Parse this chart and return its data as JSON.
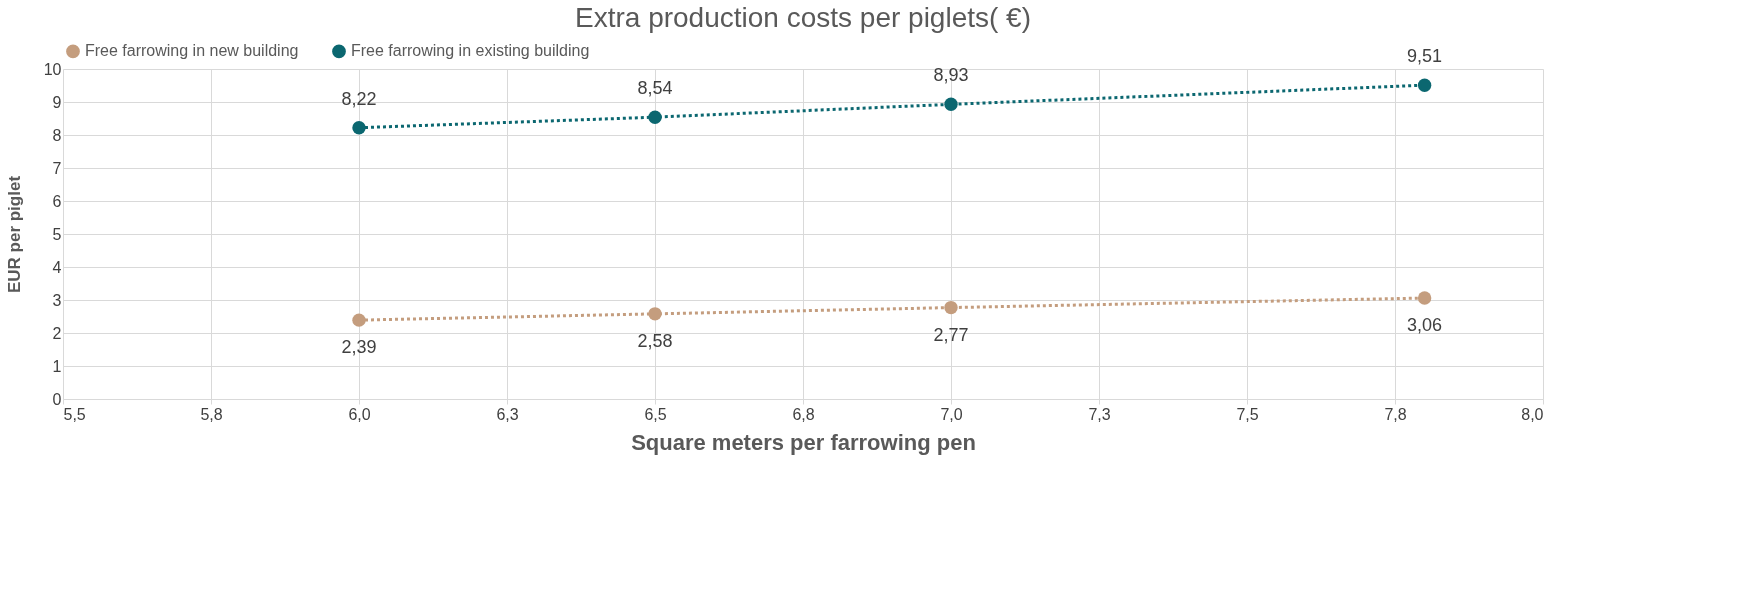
{
  "chart_data": {
    "type": "line",
    "title": "Extra production costs per piglets( €)",
    "xlabel": "Square meters per farrowing pen",
    "ylabel": "EUR per piglet",
    "x": [
      6.0,
      6.5,
      7.0,
      7.8
    ],
    "series": [
      {
        "name": "Free farrowing in new building",
        "color": "#c49d7e",
        "values": [
          2.39,
          2.58,
          2.77,
          3.06
        ],
        "value_labels": [
          "2,39",
          "2,58",
          "2,77",
          "3,06"
        ]
      },
      {
        "name": "Free farrowing in existing building",
        "color": "#0b6770",
        "values": [
          8.22,
          8.54,
          8.93,
          9.51
        ],
        "value_labels": [
          "8,22",
          "8,54",
          "8,93",
          "9,51"
        ]
      }
    ],
    "xlim": [
      5.5,
      8.0
    ],
    "xticks": [
      {
        "value": 5.5,
        "label": "5,5"
      },
      {
        "value": 5.75,
        "label": "5,8"
      },
      {
        "value": 6.0,
        "label": "6,0"
      },
      {
        "value": 6.25,
        "label": "6,3"
      },
      {
        "value": 6.5,
        "label": "6,5"
      },
      {
        "value": 6.75,
        "label": "6,8"
      },
      {
        "value": 7.0,
        "label": "7,0"
      },
      {
        "value": 7.25,
        "label": "7,3"
      },
      {
        "value": 7.5,
        "label": "7,5"
      },
      {
        "value": 7.75,
        "label": "7,8"
      },
      {
        "value": 8.0,
        "label": "8,0"
      }
    ],
    "ylim": [
      0,
      10
    ],
    "yticks": [
      0,
      1,
      2,
      3,
      4,
      5,
      6,
      7,
      8,
      9,
      10
    ],
    "grid": true,
    "legend": "top",
    "marker": "circle",
    "line_style": "dotted"
  }
}
